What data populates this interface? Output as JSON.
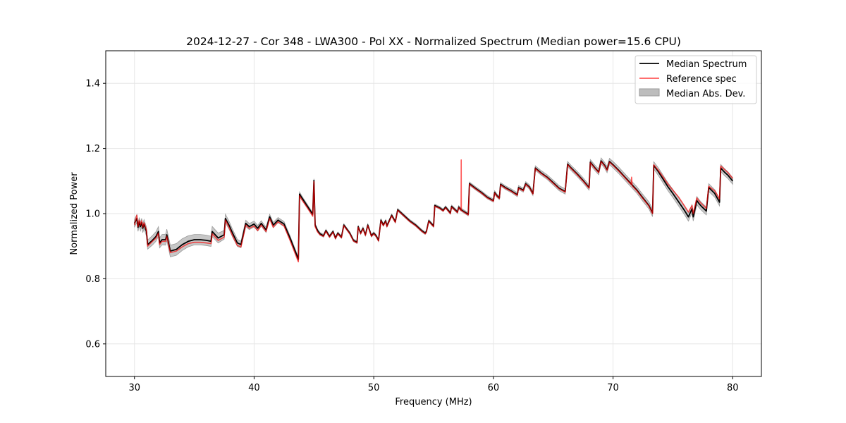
{
  "chart_data": {
    "type": "line",
    "title": "2024-12-27 - Cor 348 - LWA300 - Pol XX - Normalized Spectrum (Median power=15.6 CPU)",
    "xlabel": "Frequency (MHz)",
    "ylabel": "Normalized Power",
    "xlim": [
      27.6,
      82.4
    ],
    "ylim": [
      0.5,
      1.5
    ],
    "xticks": [
      30,
      40,
      50,
      60,
      70,
      80
    ],
    "yticks": [
      0.6,
      0.8,
      1.0,
      1.2,
      1.4
    ],
    "xtick_labels": [
      "30",
      "40",
      "50",
      "60",
      "70",
      "80"
    ],
    "ytick_labels": [
      "0.6",
      "0.8",
      "1.0",
      "1.2",
      "1.4"
    ],
    "grid": true,
    "legend_position": "top-right",
    "legend": [
      "Median Spectrum",
      "Reference spec",
      "Median Abs. Dev."
    ],
    "colors": {
      "median": "#000000",
      "reference": "#ff0000",
      "mad_fill": "#bdbdbd",
      "mad_edge": "#9a9a9a",
      "grid": "#e6e6e6"
    },
    "series": [
      {
        "name": "Median Spectrum",
        "x": [
          30.0,
          30.2,
          30.3,
          30.4,
          30.5,
          30.6,
          30.7,
          30.8,
          31.0,
          31.1,
          31.5,
          31.8,
          32.0,
          32.1,
          32.3,
          32.6,
          32.7,
          33.0,
          33.5,
          34.0,
          34.5,
          35.0,
          35.5,
          36.0,
          36.4,
          36.5,
          37.0,
          37.5,
          37.6,
          37.9,
          38.2,
          38.6,
          38.9,
          39.3,
          39.6,
          40.0,
          40.3,
          40.6,
          41.0,
          41.3,
          41.6,
          42.0,
          42.5,
          43.0,
          43.7,
          43.8,
          44.0,
          44.5,
          44.9,
          45.0,
          45.1,
          45.3,
          45.5,
          45.8,
          46.0,
          46.3,
          46.6,
          46.8,
          47.0,
          47.3,
          47.5,
          47.8,
          48.0,
          48.3,
          48.6,
          48.7,
          48.9,
          49.1,
          49.3,
          49.5,
          49.8,
          50.0,
          50.2,
          50.4,
          50.6,
          50.8,
          51.0,
          51.1,
          51.5,
          51.8,
          52.0,
          52.5,
          53.0,
          53.5,
          54.0,
          54.3,
          54.4,
          54.6,
          54.8,
          55.0,
          55.1,
          55.5,
          55.8,
          56.0,
          56.4,
          56.5,
          56.8,
          57.0,
          57.1,
          57.3,
          57.6,
          57.9,
          58.0,
          58.5,
          59.0,
          59.5,
          60.0,
          60.1,
          60.3,
          60.5,
          60.6,
          61.0,
          61.5,
          62.0,
          62.1,
          62.5,
          62.7,
          63.0,
          63.3,
          63.5,
          64.0,
          64.5,
          65.0,
          65.5,
          66.0,
          66.2,
          66.5,
          67.0,
          67.5,
          68.0,
          68.1,
          68.5,
          68.8,
          69.0,
          69.3,
          69.5,
          69.7,
          70.0,
          70.5,
          71.0,
          71.5,
          72.0,
          72.5,
          73.0,
          73.3,
          73.4,
          73.8,
          74.2,
          74.6,
          75.0,
          75.5,
          76.0,
          76.3,
          76.6,
          76.7,
          77.0,
          77.2,
          77.4,
          77.8,
          78.0,
          78.5,
          78.9,
          79.0,
          79.3,
          79.6,
          80.0
        ],
        "y": [
          0.97,
          0.985,
          0.958,
          0.975,
          0.96,
          0.972,
          0.955,
          0.968,
          0.945,
          0.905,
          0.918,
          0.93,
          0.945,
          0.91,
          0.92,
          0.92,
          0.935,
          0.885,
          0.89,
          0.905,
          0.915,
          0.92,
          0.92,
          0.918,
          0.915,
          0.945,
          0.925,
          0.935,
          0.985,
          0.965,
          0.94,
          0.91,
          0.905,
          0.97,
          0.96,
          0.968,
          0.955,
          0.97,
          0.95,
          0.99,
          0.965,
          0.98,
          0.968,
          0.925,
          0.86,
          1.06,
          1.048,
          1.02,
          0.998,
          1.102,
          0.965,
          0.948,
          0.938,
          0.932,
          0.948,
          0.93,
          0.945,
          0.925,
          0.94,
          0.928,
          0.965,
          0.95,
          0.94,
          0.918,
          0.912,
          0.96,
          0.94,
          0.955,
          0.935,
          0.965,
          0.932,
          0.94,
          0.932,
          0.918,
          0.98,
          0.965,
          0.978,
          0.962,
          0.995,
          0.975,
          1.012,
          0.995,
          0.978,
          0.965,
          0.948,
          0.94,
          0.945,
          0.978,
          0.97,
          0.962,
          1.025,
          1.018,
          1.01,
          1.02,
          1.002,
          1.022,
          1.012,
          1.005,
          1.02,
          1.012,
          1.005,
          0.998,
          1.092,
          1.078,
          1.065,
          1.05,
          1.04,
          1.065,
          1.055,
          1.048,
          1.09,
          1.08,
          1.07,
          1.058,
          1.08,
          1.072,
          1.092,
          1.082,
          1.062,
          1.14,
          1.125,
          1.112,
          1.095,
          1.078,
          1.068,
          1.152,
          1.14,
          1.122,
          1.102,
          1.08,
          1.158,
          1.14,
          1.128,
          1.162,
          1.148,
          1.135,
          1.16,
          1.15,
          1.132,
          1.112,
          1.092,
          1.072,
          1.048,
          1.025,
          1.002,
          1.148,
          1.128,
          1.105,
          1.082,
          1.062,
          1.035,
          1.008,
          0.99,
          1.015,
          0.99,
          1.04,
          1.03,
          1.022,
          1.008,
          1.08,
          1.062,
          1.035,
          1.14,
          1.128,
          1.118,
          1.1
        ]
      },
      {
        "name": "Reference spec",
        "x": [
          30.0,
          30.2,
          30.3,
          30.4,
          30.5,
          30.6,
          30.7,
          30.8,
          31.0,
          31.1,
          31.5,
          31.8,
          32.0,
          32.1,
          32.3,
          32.6,
          32.7,
          33.0,
          33.5,
          34.0,
          34.5,
          35.0,
          35.5,
          36.0,
          36.4,
          36.5,
          37.0,
          37.5,
          37.6,
          37.9,
          38.2,
          38.6,
          38.9,
          39.3,
          39.6,
          40.0,
          40.3,
          40.6,
          41.0,
          41.3,
          41.6,
          42.0,
          42.5,
          43.0,
          43.7,
          43.8,
          44.0,
          44.5,
          44.9,
          45.0,
          45.1,
          45.3,
          45.5,
          45.8,
          46.0,
          46.3,
          46.6,
          46.8,
          47.0,
          47.3,
          47.5,
          47.8,
          48.0,
          48.3,
          48.6,
          48.7,
          48.9,
          49.1,
          49.3,
          49.5,
          49.8,
          50.0,
          50.2,
          50.4,
          50.6,
          50.8,
          51.0,
          51.1,
          51.5,
          51.8,
          52.0,
          52.5,
          53.0,
          53.5,
          54.0,
          54.3,
          54.4,
          54.6,
          54.8,
          55.0,
          55.1,
          55.5,
          55.8,
          56.0,
          56.4,
          56.5,
          56.8,
          57.0,
          57.1,
          57.3,
          57.31,
          57.32,
          57.6,
          57.9,
          58.0,
          58.5,
          59.0,
          59.5,
          60.0,
          60.1,
          60.3,
          60.5,
          60.6,
          61.0,
          61.5,
          62.0,
          62.1,
          62.5,
          62.7,
          63.0,
          63.3,
          63.5,
          64.0,
          64.5,
          65.0,
          65.5,
          66.0,
          66.2,
          66.5,
          67.0,
          67.5,
          68.0,
          68.1,
          68.5,
          68.8,
          69.0,
          69.3,
          69.5,
          69.7,
          70.0,
          70.5,
          71.0,
          71.5,
          71.55,
          71.6,
          72.0,
          72.5,
          73.0,
          73.3,
          73.4,
          73.8,
          74.2,
          74.6,
          75.0,
          75.5,
          76.0,
          76.3,
          76.6,
          76.7,
          77.0,
          77.2,
          77.4,
          77.8,
          78.0,
          78.5,
          78.9,
          79.0,
          79.3,
          79.6,
          80.0
        ],
        "y": [
          0.965,
          0.995,
          0.96,
          0.98,
          0.965,
          0.978,
          0.958,
          0.972,
          0.95,
          0.9,
          0.915,
          0.925,
          0.94,
          0.905,
          0.915,
          0.915,
          0.93,
          0.88,
          0.885,
          0.898,
          0.908,
          0.912,
          0.912,
          0.91,
          0.908,
          0.938,
          0.918,
          0.928,
          0.98,
          0.958,
          0.932,
          0.902,
          0.898,
          0.965,
          0.955,
          0.962,
          0.948,
          0.965,
          0.945,
          0.985,
          0.958,
          0.975,
          0.962,
          0.918,
          0.852,
          1.055,
          1.042,
          1.015,
          0.992,
          1.098,
          0.96,
          0.944,
          0.935,
          0.93,
          0.946,
          0.928,
          0.943,
          0.923,
          0.938,
          0.926,
          0.963,
          0.948,
          0.938,
          0.916,
          0.91,
          0.958,
          0.938,
          0.953,
          0.933,
          0.963,
          0.93,
          0.938,
          0.93,
          0.916,
          0.978,
          0.963,
          0.976,
          0.96,
          0.993,
          0.973,
          1.01,
          0.993,
          0.976,
          0.963,
          0.946,
          0.938,
          0.943,
          0.976,
          0.968,
          0.96,
          1.023,
          1.016,
          1.008,
          1.018,
          1.0,
          1.02,
          1.01,
          1.003,
          1.018,
          1.01,
          1.165,
          1.01,
          1.003,
          0.996,
          1.09,
          1.076,
          1.063,
          1.048,
          1.038,
          1.063,
          1.053,
          1.046,
          1.088,
          1.078,
          1.068,
          1.056,
          1.078,
          1.07,
          1.09,
          1.08,
          1.06,
          1.138,
          1.123,
          1.11,
          1.093,
          1.076,
          1.066,
          1.15,
          1.138,
          1.12,
          1.1,
          1.078,
          1.156,
          1.138,
          1.126,
          1.16,
          1.146,
          1.133,
          1.158,
          1.148,
          1.13,
          1.11,
          1.09,
          1.112,
          1.085,
          1.07,
          1.046,
          1.023,
          1.0,
          1.15,
          1.132,
          1.112,
          1.09,
          1.072,
          1.05,
          1.022,
          1.005,
          1.025,
          1.0,
          1.048,
          1.038,
          1.03,
          1.016,
          1.084,
          1.07,
          1.045,
          1.146,
          1.136,
          1.126,
          1.108
        ]
      },
      {
        "name": "Median Abs. Dev.",
        "x": [
          30,
          31,
          32,
          33,
          34,
          35,
          36,
          37,
          38,
          39,
          40,
          41,
          42,
          43,
          44,
          45,
          46,
          48,
          50,
          52,
          54,
          56,
          58,
          60,
          62,
          64,
          66,
          68,
          70,
          72,
          73,
          74,
          76,
          78,
          80
        ],
        "mad": [
          0.012,
          0.014,
          0.015,
          0.018,
          0.018,
          0.016,
          0.016,
          0.015,
          0.012,
          0.01,
          0.009,
          0.008,
          0.008,
          0.007,
          0.006,
          0.005,
          0.004,
          0.004,
          0.004,
          0.004,
          0.004,
          0.004,
          0.005,
          0.005,
          0.006,
          0.007,
          0.008,
          0.008,
          0.01,
          0.01,
          0.011,
          0.012,
          0.013,
          0.012,
          0.01
        ]
      }
    ]
  }
}
